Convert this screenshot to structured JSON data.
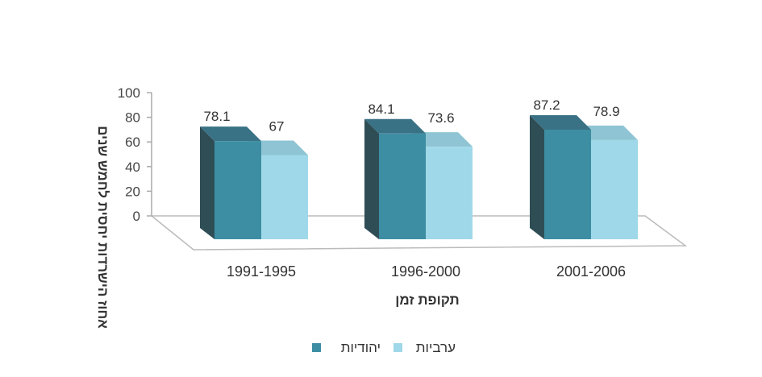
{
  "chart_data": {
    "type": "bar",
    "title": "",
    "xlabel": "תקופת זמן",
    "ylabel": "אחוז הישרדות יחסית לחמש שנים",
    "categories": [
      "1991-1995",
      "1996-2000",
      "2001-2006"
    ],
    "series": [
      {
        "name": "יהודיות",
        "values": [
          78.1,
          84.1,
          87.2
        ],
        "labels": [
          "78.1",
          "84.1",
          "87.2"
        ],
        "color": "#3d8ea3"
      },
      {
        "name": "ערביות",
        "values": [
          67,
          73.6,
          78.9
        ],
        "labels": [
          "67",
          "73.6",
          "78.9"
        ],
        "color": "#9fd8e8"
      }
    ],
    "ylim": [
      0,
      100
    ],
    "yticks": [
      "0",
      "20",
      "40",
      "60",
      "80",
      "100"
    ],
    "legend": "bottom",
    "grid": false
  }
}
